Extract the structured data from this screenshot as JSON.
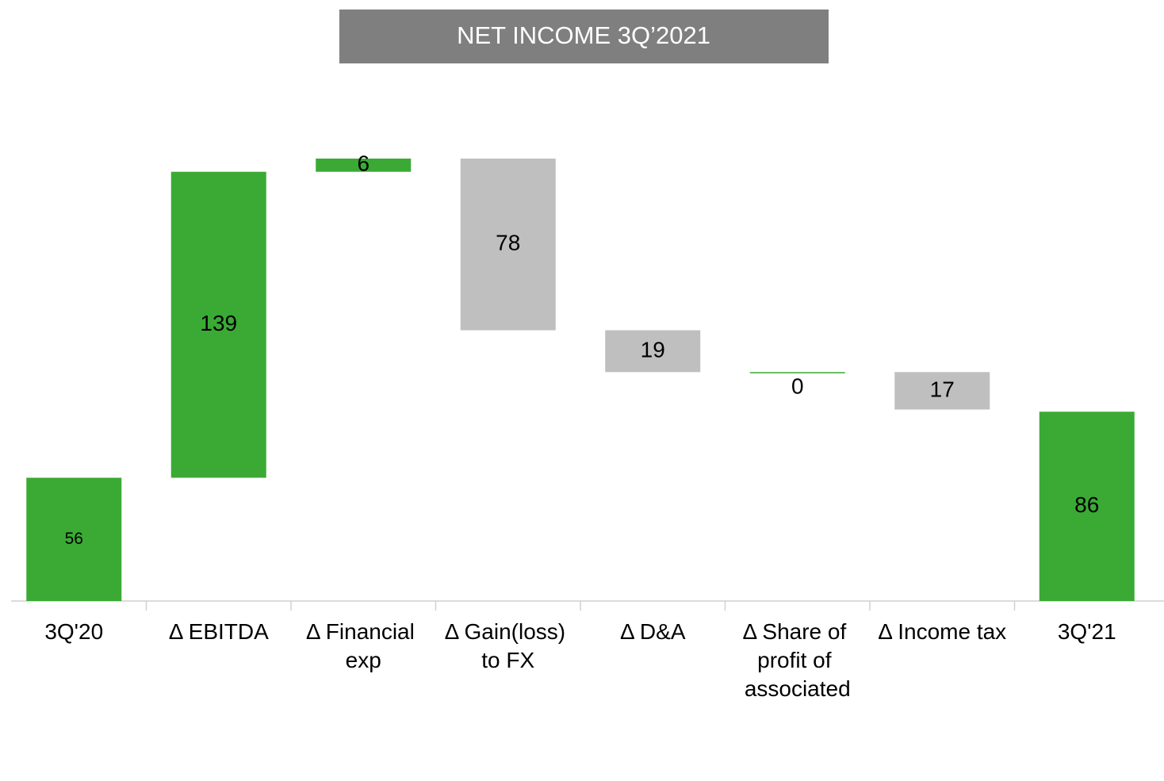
{
  "chart_data": {
    "type": "waterfall",
    "title": "NET INCOME 3Q’2021",
    "categories": [
      "3Q'20",
      "Δ EBITDA",
      "Δ Financial exp",
      "Δ Gain(loss) to FX",
      "Δ D&A",
      "Δ Share of profit of associated",
      "Δ Income tax",
      "3Q'21"
    ],
    "values": [
      56,
      139,
      6,
      -78,
      -19,
      0,
      -17,
      86
    ],
    "value_labels": [
      "56",
      "139",
      "6",
      "78",
      "19",
      "0",
      "17",
      "86"
    ],
    "measure": [
      "absolute",
      "relative",
      "relative",
      "relative",
      "relative",
      "relative",
      "relative",
      "total"
    ],
    "increase_color": "#3aaa35",
    "decrease_color": "#bfbfbf",
    "total_color": "#3aaa35"
  }
}
